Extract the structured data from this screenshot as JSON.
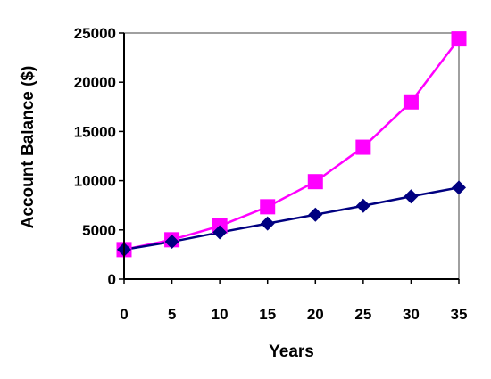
{
  "chart_data": {
    "type": "line",
    "title": "",
    "xlabel": "Years",
    "ylabel": "Account Balance ($)",
    "xlim": [
      0,
      35
    ],
    "ylim": [
      0,
      25000
    ],
    "x_ticks": [
      0,
      5,
      10,
      15,
      20,
      25,
      30,
      35
    ],
    "y_ticks": [
      0,
      5000,
      10000,
      15000,
      20000,
      25000
    ],
    "grid": false,
    "legend": "none",
    "x": [
      0,
      5,
      10,
      15,
      20,
      25,
      30,
      35
    ],
    "series": [
      {
        "marker": "square",
        "color": "#ff00ff",
        "values": [
          3000,
          4000,
          5400,
          7350,
          9900,
          13400,
          18000,
          24400
        ]
      },
      {
        "marker": "diamond",
        "color": "#000080",
        "values": [
          3000,
          3800,
          4750,
          5650,
          6550,
          7450,
          8400,
          9300
        ]
      }
    ]
  }
}
